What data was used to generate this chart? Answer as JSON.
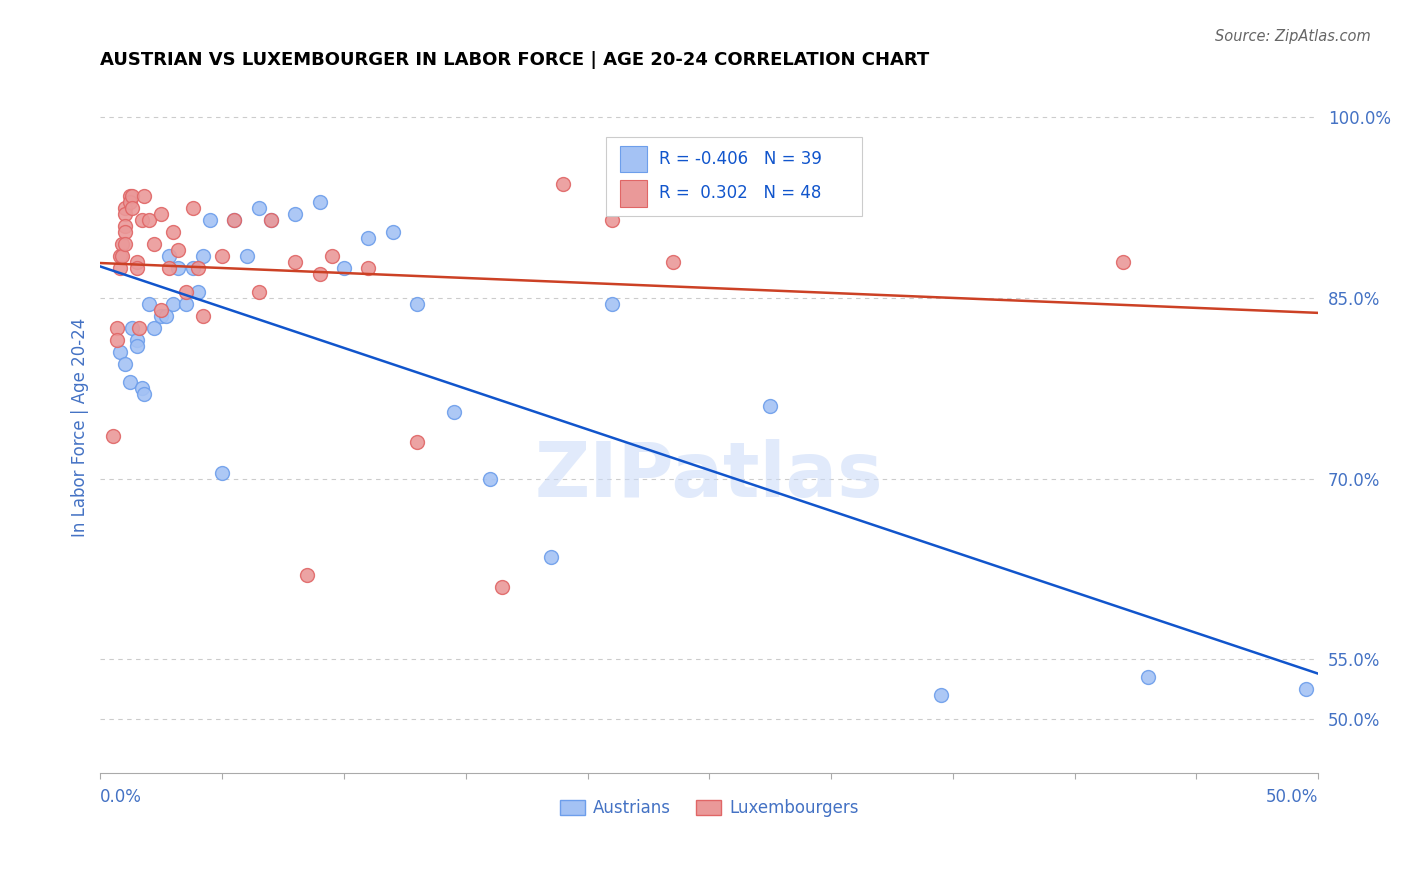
{
  "title": "AUSTRIAN VS LUXEMBOURGER IN LABOR FORCE | AGE 20-24 CORRELATION CHART",
  "source": "Source: ZipAtlas.com",
  "ylabel": "In Labor Force | Age 20-24",
  "ytick_labels": [
    "50.0%",
    "55.0%",
    "70.0%",
    "85.0%",
    "100.0%"
  ],
  "ytick_values": [
    0.5,
    0.55,
    0.7,
    0.85,
    1.0
  ],
  "xlim": [
    0.0,
    0.5
  ],
  "ylim": [
    0.455,
    1.03
  ],
  "legend_blue_R": "-0.406",
  "legend_blue_N": "39",
  "legend_pink_R": "0.302",
  "legend_pink_N": "48",
  "blue_color": "#a4c2f4",
  "pink_color": "#ea9999",
  "blue_edge_color": "#6d9eeb",
  "pink_edge_color": "#e06666",
  "blue_line_color": "#1155cc",
  "pink_line_color": "#cc4125",
  "axis_label_color": "#4472c4",
  "watermark": "ZIPatlas",
  "austrians_x": [
    0.008,
    0.01,
    0.012,
    0.013,
    0.015,
    0.015,
    0.017,
    0.018,
    0.02,
    0.022,
    0.025,
    0.027,
    0.028,
    0.03,
    0.032,
    0.035,
    0.038,
    0.04,
    0.042,
    0.045,
    0.05,
    0.055,
    0.06,
    0.065,
    0.07,
    0.08,
    0.09,
    0.1,
    0.11,
    0.12,
    0.13,
    0.145,
    0.16,
    0.185,
    0.21,
    0.275,
    0.345,
    0.43,
    0.495
  ],
  "austrians_y": [
    0.805,
    0.795,
    0.78,
    0.825,
    0.815,
    0.81,
    0.775,
    0.77,
    0.845,
    0.825,
    0.835,
    0.835,
    0.885,
    0.845,
    0.875,
    0.845,
    0.875,
    0.855,
    0.885,
    0.915,
    0.705,
    0.915,
    0.885,
    0.925,
    0.915,
    0.92,
    0.93,
    0.875,
    0.9,
    0.905,
    0.845,
    0.755,
    0.7,
    0.635,
    0.845,
    0.76,
    0.52,
    0.535,
    0.525
  ],
  "luxembourgers_x": [
    0.005,
    0.007,
    0.007,
    0.008,
    0.008,
    0.009,
    0.009,
    0.01,
    0.01,
    0.01,
    0.01,
    0.01,
    0.012,
    0.012,
    0.013,
    0.013,
    0.015,
    0.015,
    0.016,
    0.017,
    0.018,
    0.02,
    0.022,
    0.025,
    0.025,
    0.028,
    0.03,
    0.032,
    0.035,
    0.038,
    0.04,
    0.042,
    0.05,
    0.055,
    0.065,
    0.07,
    0.08,
    0.085,
    0.09,
    0.095,
    0.11,
    0.13,
    0.165,
    0.19,
    0.21,
    0.235,
    0.27,
    0.42
  ],
  "luxembourgers_y": [
    0.735,
    0.825,
    0.815,
    0.885,
    0.875,
    0.895,
    0.885,
    0.925,
    0.92,
    0.91,
    0.905,
    0.895,
    0.935,
    0.93,
    0.935,
    0.925,
    0.88,
    0.875,
    0.825,
    0.915,
    0.935,
    0.915,
    0.895,
    0.84,
    0.92,
    0.875,
    0.905,
    0.89,
    0.855,
    0.925,
    0.875,
    0.835,
    0.885,
    0.915,
    0.855,
    0.915,
    0.88,
    0.62,
    0.87,
    0.885,
    0.875,
    0.73,
    0.61,
    0.945,
    0.915,
    0.88,
    0.94,
    0.88
  ]
}
